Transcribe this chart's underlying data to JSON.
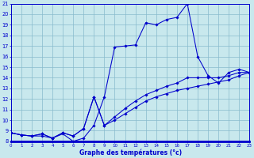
{
  "xlabel": "Graphe des températures (°c)",
  "bg_color": "#c8e8ed",
  "line_color": "#0000cc",
  "grid_color": "#88bbcc",
  "xlim": [
    0,
    23
  ],
  "ylim": [
    8,
    21
  ],
  "xticks": [
    0,
    1,
    2,
    3,
    4,
    5,
    6,
    7,
    8,
    9,
    10,
    11,
    12,
    13,
    14,
    15,
    16,
    17,
    18,
    19,
    20,
    21,
    22,
    23
  ],
  "yticks": [
    8,
    9,
    10,
    11,
    12,
    13,
    14,
    15,
    16,
    17,
    18,
    19,
    20,
    21
  ],
  "curve_main_x": [
    0,
    1,
    2,
    3,
    4,
    5,
    6,
    7,
    8,
    9,
    10,
    11,
    12,
    13,
    14,
    15,
    16,
    17,
    18,
    19,
    20,
    21,
    22,
    23
  ],
  "curve_main_y": [
    8.8,
    8.6,
    8.5,
    8.5,
    8.3,
    8.7,
    8.0,
    8.3,
    9.5,
    12.2,
    16.9,
    17.0,
    17.1,
    19.2,
    19.0,
    19.5,
    19.7,
    21.0,
    16.0,
    14.2,
    13.5,
    14.5,
    14.8,
    14.5
  ],
  "curve_mid_x": [
    0,
    1,
    2,
    3,
    4,
    5,
    6,
    7,
    8,
    9,
    10,
    11,
    12,
    13,
    14,
    15,
    16,
    17,
    18,
    19,
    20,
    21,
    22,
    23
  ],
  "curve_mid_y": [
    8.8,
    8.6,
    8.5,
    8.7,
    8.3,
    8.8,
    8.5,
    9.2,
    12.2,
    9.5,
    10.3,
    11.1,
    11.8,
    12.4,
    12.8,
    13.2,
    13.5,
    14.0,
    14.0,
    14.0,
    14.0,
    14.2,
    14.5,
    14.5
  ],
  "curve_low_x": [
    0,
    1,
    2,
    3,
    4,
    5,
    6,
    7,
    8,
    9,
    10,
    11,
    12,
    13,
    14,
    15,
    16,
    17,
    18,
    19,
    20,
    21,
    22,
    23
  ],
  "curve_low_y": [
    8.8,
    8.6,
    8.5,
    8.7,
    8.3,
    8.8,
    8.5,
    9.2,
    12.2,
    9.5,
    10.0,
    10.6,
    11.2,
    11.8,
    12.2,
    12.5,
    12.8,
    13.0,
    13.2,
    13.4,
    13.6,
    13.8,
    14.2,
    14.5
  ]
}
